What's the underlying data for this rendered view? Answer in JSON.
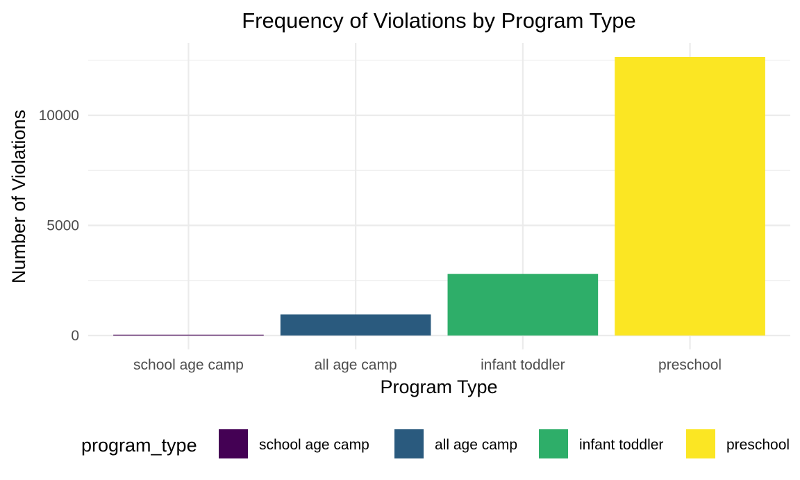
{
  "chart_data": {
    "type": "bar",
    "title": "Frequency of Violations by Program Type",
    "xlabel": "Program Type",
    "ylabel": "Number of Violations",
    "categories": [
      "school age camp",
      "all age camp",
      "infant toddler",
      "preschool"
    ],
    "values": [
      30,
      960,
      2800,
      12650
    ],
    "colors": [
      "#440154",
      "#2a5a7e",
      "#2eae69",
      "#fbe623"
    ],
    "ylim": [
      0,
      13300
    ],
    "yticks": [
      0,
      5000,
      10000
    ],
    "ytick_labels": [
      "0",
      "5000",
      "10000"
    ],
    "grid": true,
    "legend": {
      "title": "program_type",
      "position": "bottom",
      "entries": [
        "school age camp",
        "all age camp",
        "infant toddler",
        "preschool"
      ]
    }
  }
}
